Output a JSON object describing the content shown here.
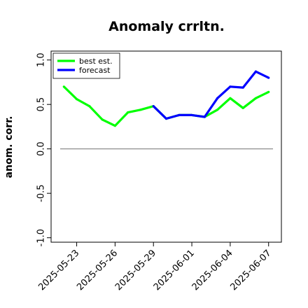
{
  "chart_data": {
    "type": "line",
    "title": "Anomaly crrltn.",
    "xlabel": "",
    "ylabel": "anom. corr.",
    "x": [
      "2025-05-22",
      "2025-05-23",
      "2025-05-24",
      "2025-05-25",
      "2025-05-26",
      "2025-05-27",
      "2025-05-28",
      "2025-05-29",
      "2025-05-30",
      "2025-05-31",
      "2025-06-01",
      "2025-06-02",
      "2025-06-03",
      "2025-06-04",
      "2025-06-05",
      "2025-06-06",
      "2025-06-07"
    ],
    "series": [
      {
        "name": "best est.",
        "color": "#00ff00",
        "x": [
          "2025-05-22",
          "2025-05-23",
          "2025-05-24",
          "2025-05-25",
          "2025-05-26",
          "2025-05-27",
          "2025-05-28",
          "2025-05-29",
          "2025-05-30",
          "2025-05-31",
          "2025-06-01",
          "2025-06-02",
          "2025-06-03",
          "2025-06-04",
          "2025-06-05",
          "2025-06-06",
          "2025-06-07"
        ],
        "values": [
          0.7,
          0.56,
          0.48,
          0.33,
          0.26,
          0.41,
          0.44,
          0.48,
          0.34,
          0.38,
          0.38,
          0.36,
          0.44,
          0.57,
          0.46,
          0.57,
          0.64
        ]
      },
      {
        "name": "forecast",
        "color": "#0000ff",
        "x": [
          "2025-05-29",
          "2025-05-30",
          "2025-05-31",
          "2025-06-01",
          "2025-06-02",
          "2025-06-03",
          "2025-06-04",
          "2025-06-05",
          "2025-06-06",
          "2025-06-07"
        ],
        "values": [
          0.48,
          0.34,
          0.38,
          0.38,
          0.36,
          0.57,
          0.7,
          0.69,
          0.87,
          0.8
        ]
      }
    ],
    "reference_line": {
      "y": 0.0,
      "color": "#808080"
    },
    "xticks": [
      "2025-05-23",
      "2025-05-26",
      "2025-05-29",
      "2025-06-01",
      "2025-06-04",
      "2025-06-07"
    ],
    "xtick_highlight": {
      "label": "2025-05-29",
      "color": "#228b22"
    },
    "yticks": [
      "-1.0",
      "-0.5",
      "0.0",
      "0.5",
      "1.0"
    ],
    "ylim": [
      -1.05,
      1.1
    ],
    "xlim": [
      "2025-05-21",
      "2025-06-08"
    ],
    "grid": false,
    "legend": "top-left"
  }
}
